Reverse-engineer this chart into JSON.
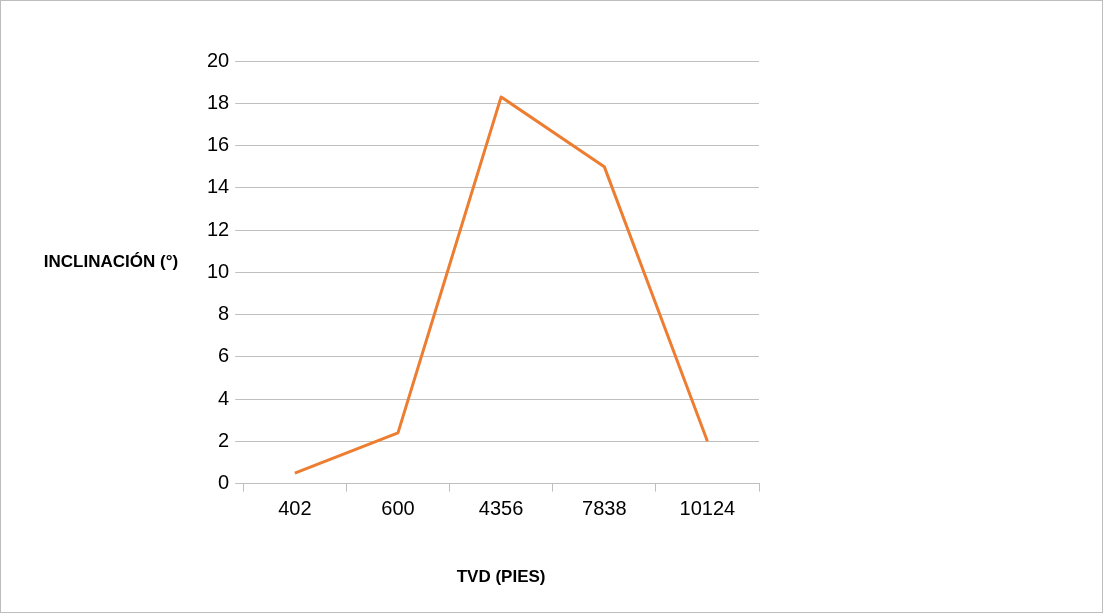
{
  "chart_data": {
    "type": "line",
    "xlabel": "TVD (PIES)",
    "ylabel": "INCLINACIÓN (°)",
    "categories": [
      "402",
      "600",
      "4356",
      "7838",
      "10124"
    ],
    "series": [
      {
        "color": "#ed7d31",
        "values": [
          0.5,
          2.4,
          18.3,
          15.0,
          2.0
        ]
      }
    ],
    "ylim": [
      0,
      20
    ],
    "yticks": [
      0,
      2,
      4,
      6,
      8,
      10,
      12,
      14,
      16,
      18,
      20
    ],
    "grid": "y",
    "legend": false,
    "marker": "none",
    "line_style": "solid"
  }
}
